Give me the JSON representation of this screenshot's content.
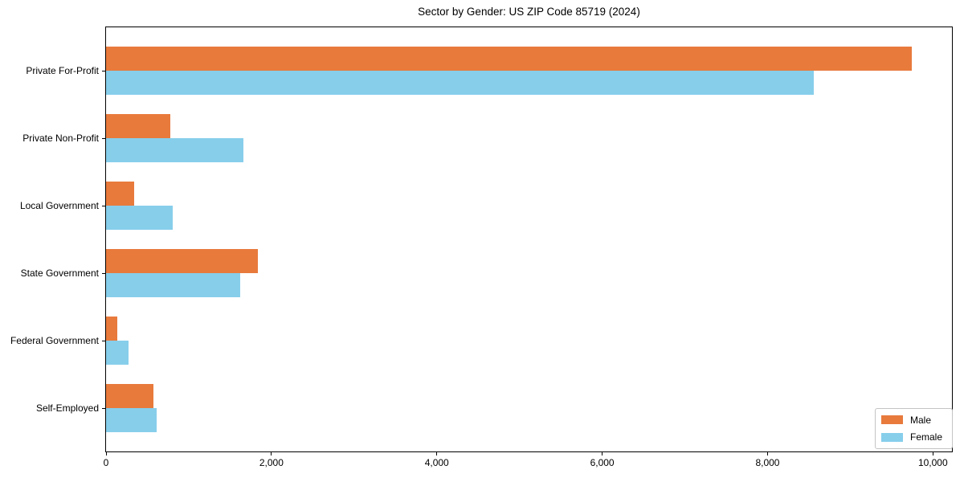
{
  "title": "Sector by Gender: US ZIP Code 85719 (2024)",
  "chart_data": {
    "type": "bar",
    "orientation": "horizontal",
    "title": "Sector by Gender: US ZIP Code 85719 (2024)",
    "categories": [
      "Private For-Profit",
      "Private Non-Profit",
      "Local Government",
      "State Government",
      "Federal Government",
      "Self-Employed"
    ],
    "series": [
      {
        "name": "Male",
        "color": "#E87A3C",
        "values": [
          9740,
          775,
          340,
          1840,
          140,
          570
        ]
      },
      {
        "name": "Female",
        "color": "#87CEEB",
        "values": [
          8560,
          1660,
          810,
          1625,
          270,
          610
        ]
      }
    ],
    "xlabel": "",
    "ylabel": "",
    "xlim": [
      0,
      10230
    ],
    "x_ticks": [
      0,
      2000,
      4000,
      6000,
      8000,
      10000
    ],
    "x_tick_labels": [
      "0",
      "2,000",
      "4,000",
      "6,000",
      "8,000",
      "10,000"
    ],
    "grid": false,
    "legend_position": "lower right"
  }
}
